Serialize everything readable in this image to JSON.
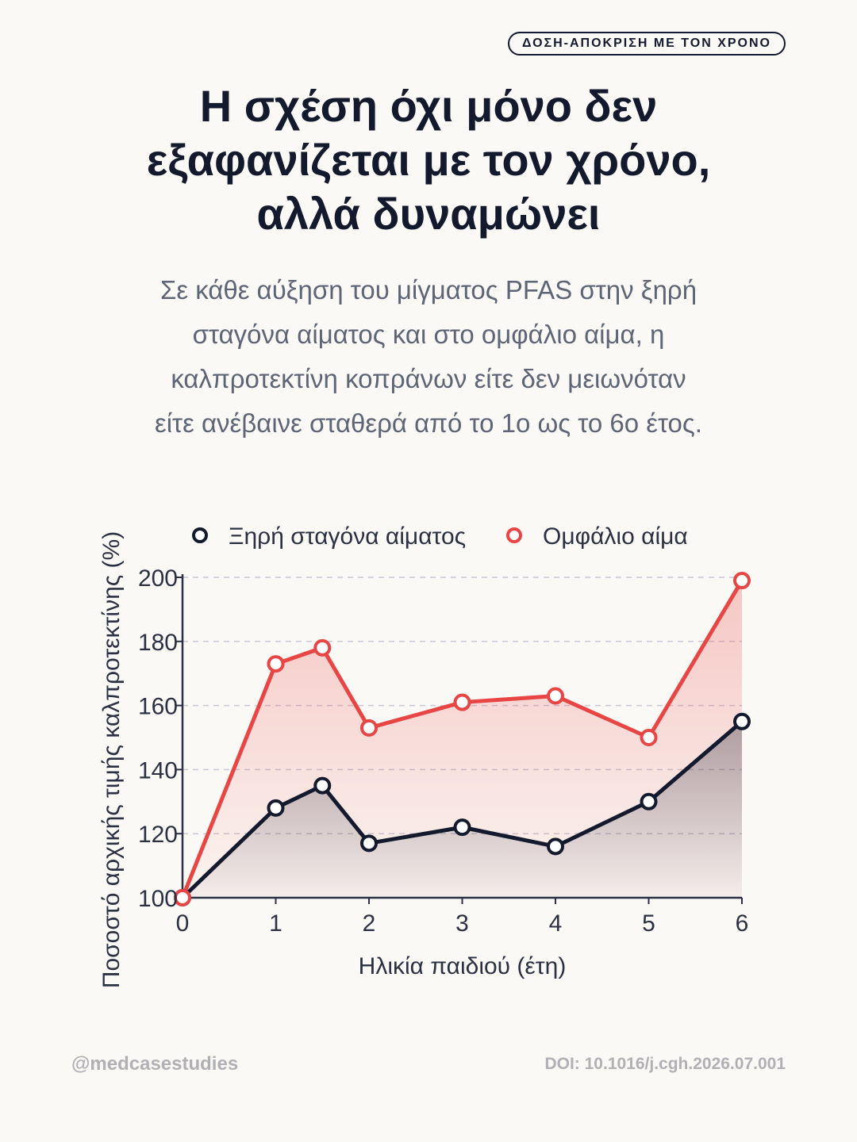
{
  "header": {
    "badge": "ΔΟΣΗ-ΑΠΟΚΡΙΣΗ ΜΕ ΤΟΝ ΧΡΟΝΟ",
    "title_lines": [
      "Η σχέση όχι μόνο δεν",
      "εξαφανίζεται με τον χρόνο,",
      "αλλά δυναμώνει"
    ],
    "subtitle_lines": [
      "Σε κάθε αύξηση του μίγματος PFAS στην ξηρή",
      "σταγόνα αίματος και στο ομφάλιο αίμα, η",
      "καλπροτεκτίνη κοπράνων είτε δεν μειωνόταν",
      "είτε ανέβαινε σταθερά από το 1ο ως το 6ο έτος."
    ]
  },
  "chart_data": {
    "type": "line",
    "xlabel": "Ηλικία παιδιού (έτη)",
    "ylabel": "Ποσοστό αρχικής τιμής καλπροτεκτίνης (%)",
    "x": [
      0,
      1,
      1.5,
      2,
      3,
      4,
      5,
      6
    ],
    "xticks": [
      "0",
      "1",
      "2",
      "3",
      "4",
      "5",
      "6"
    ],
    "yticks": [
      "100",
      "120",
      "140",
      "160",
      "180",
      "200"
    ],
    "xlim": [
      0,
      6
    ],
    "ylim": [
      100,
      200
    ],
    "grid": "horizontal-dashed",
    "legend": "top",
    "series": [
      {
        "name": "Ξηρή σταγόνα αίματος",
        "color": "#141a2e",
        "values": [
          100,
          128,
          135,
          117,
          122,
          116,
          130,
          155
        ]
      },
      {
        "name": "Ομφάλιο αίμα",
        "color": "#e84545",
        "values": [
          100,
          173,
          178,
          153,
          161,
          163,
          150,
          199
        ]
      }
    ]
  },
  "footer": {
    "handle": "@medcasestudies",
    "doi": "DOI: 10.1016/j.cgh.2026.07.001"
  }
}
